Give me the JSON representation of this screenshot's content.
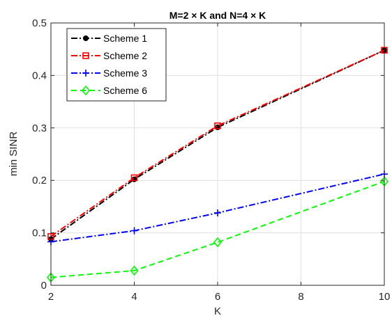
{
  "chart_data": {
    "type": "line",
    "title": "M=2 × K and N=4 × K",
    "xlabel": "K",
    "ylabel": "min SINR",
    "x": [
      2,
      4,
      6,
      10
    ],
    "xlim": [
      2,
      10
    ],
    "ylim": [
      0,
      0.5
    ],
    "xticks": [
      "2",
      "4",
      "6",
      "8",
      "10"
    ],
    "yticks": [
      "0",
      "0.1",
      "0.2",
      "0.3",
      "0.4",
      "0.5"
    ],
    "grid": true,
    "legend_position": "top-left",
    "series": [
      {
        "name": "Scheme 1",
        "values": [
          0.088,
          0.202,
          0.301,
          0.448
        ],
        "color": "#000000",
        "marker": "dot",
        "dash": "9,3,2,3"
      },
      {
        "name": "Scheme 2",
        "values": [
          0.093,
          0.205,
          0.304,
          0.448
        ],
        "color": "#ff0000",
        "marker": "square",
        "dash": "9,3,2,3"
      },
      {
        "name": "Scheme 3",
        "values": [
          0.083,
          0.104,
          0.138,
          0.212
        ],
        "color": "#0000ff",
        "marker": "plus",
        "dash": "9,3,2,3"
      },
      {
        "name": "Scheme 6",
        "values": [
          0.015,
          0.028,
          0.082,
          0.198
        ],
        "color": "#00ff00",
        "marker": "diamond",
        "dash": "8,5"
      }
    ]
  }
}
